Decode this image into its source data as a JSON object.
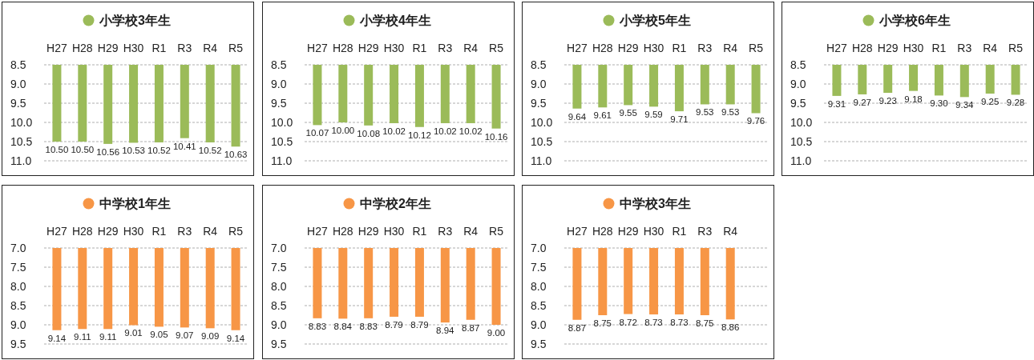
{
  "chart_data": [
    {
      "type": "bar",
      "title": "小学校3年生",
      "categories": [
        "H27",
        "H28",
        "H29",
        "H30",
        "R1",
        "R3",
        "R4",
        "R5"
      ],
      "values": [
        10.5,
        10.5,
        10.56,
        10.53,
        10.52,
        10.41,
        10.52,
        10.63
      ],
      "value_labels": [
        "10.50",
        "10.50",
        "10.56",
        "10.53",
        "10.52",
        "10.41",
        "10.52",
        "10.63"
      ],
      "color": "#9bbb59",
      "ylim": [
        11.0,
        8.5
      ],
      "yticks": [
        8.5,
        {
          "value": 9,
          "label": "9.0"
        },
        9.5,
        {
          "value": 10,
          "label": "10.0"
        },
        10.5,
        {
          "value": 11,
          "label": "11.0"
        }
      ],
      "grid": "y"
    },
    {
      "type": "bar",
      "title": "小学校4年生",
      "categories": [
        "H27",
        "H28",
        "H29",
        "H30",
        "R1",
        "R3",
        "R4",
        "R5"
      ],
      "values": [
        10.07,
        10.0,
        10.08,
        10.02,
        10.12,
        10.02,
        10.02,
        10.16
      ],
      "value_labels": [
        "10.07",
        "10.00",
        "10.08",
        "10.02",
        "10.12",
        "10.02",
        "10.02",
        "10.16"
      ],
      "color": "#9bbb59",
      "ylim": [
        11.0,
        8.5
      ],
      "yticks": [
        8.5,
        {
          "value": 9,
          "label": "9.0"
        },
        9.5,
        {
          "value": 10,
          "label": "10.0"
        },
        10.5,
        {
          "value": 11,
          "label": "11.0"
        }
      ],
      "grid": "y"
    },
    {
      "type": "bar",
      "title": "小学校5年生",
      "categories": [
        "H27",
        "H28",
        "H29",
        "H30",
        "R1",
        "R3",
        "R4",
        "R5"
      ],
      "values": [
        9.64,
        9.61,
        9.55,
        9.59,
        9.71,
        9.53,
        9.53,
        9.76
      ],
      "value_labels": [
        "9.64",
        "9.61",
        "9.55",
        "9.59",
        "9.71",
        "9.53",
        "9.53",
        "9.76"
      ],
      "color": "#9bbb59",
      "ylim": [
        11.0,
        8.5
      ],
      "yticks": [
        8.5,
        {
          "value": 9,
          "label": "9.0"
        },
        9.5,
        {
          "value": 10,
          "label": "10.0"
        },
        10.5,
        {
          "value": 11,
          "label": "11.0"
        }
      ],
      "grid": "y"
    },
    {
      "type": "bar",
      "title": "小学校6年生",
      "categories": [
        "H27",
        "H28",
        "H29",
        "H30",
        "R1",
        "R3",
        "R4",
        "R5"
      ],
      "values": [
        9.31,
        9.27,
        9.23,
        9.18,
        9.3,
        9.34,
        9.25,
        9.28
      ],
      "value_labels": [
        "9.31",
        "9.27",
        "9.23",
        "9.18",
        "9.30",
        "9.34",
        "9.25",
        "9.28"
      ],
      "color": "#9bbb59",
      "ylim": [
        11.0,
        8.5
      ],
      "yticks": [
        8.5,
        {
          "value": 9,
          "label": "9.0"
        },
        9.5,
        {
          "value": 10,
          "label": "10.0"
        },
        10.5,
        {
          "value": 11,
          "label": "11.0"
        }
      ],
      "grid": "y"
    },
    {
      "type": "bar",
      "title": "中学校1年生",
      "categories": [
        "H27",
        "H28",
        "H29",
        "H30",
        "R1",
        "R3",
        "R4",
        "R5"
      ],
      "values": [
        9.14,
        9.11,
        9.11,
        9.01,
        9.05,
        9.07,
        9.09,
        9.14
      ],
      "value_labels": [
        "9.14",
        "9.11",
        "9.11",
        "9.01",
        "9.05",
        "9.07",
        "9.09",
        "9.14"
      ],
      "color": "#f79646",
      "ylim": [
        9.5,
        7.0
      ],
      "yticks": [
        {
          "value": 7,
          "label": "7.0"
        },
        7.5,
        {
          "value": 8,
          "label": "8.0"
        },
        8.5,
        {
          "value": 9,
          "label": "9.0"
        },
        9.5
      ],
      "grid": "y"
    },
    {
      "type": "bar",
      "title": "中学校2年生",
      "categories": [
        "H27",
        "H28",
        "H29",
        "H30",
        "R1",
        "R3",
        "R4",
        "R5"
      ],
      "values": [
        8.83,
        8.84,
        8.83,
        8.79,
        8.79,
        8.94,
        8.87,
        9.0
      ],
      "value_labels": [
        "8.83",
        "8.84",
        "8.83",
        "8.79",
        "8.79",
        "8.94",
        "8.87",
        "9.00"
      ],
      "color": "#f79646",
      "ylim": [
        9.5,
        7.0
      ],
      "yticks": [
        {
          "value": 7,
          "label": "7.0"
        },
        7.5,
        {
          "value": 8,
          "label": "8.0"
        },
        8.5,
        {
          "value": 9,
          "label": "9.0"
        },
        9.5
      ],
      "grid": "y"
    },
    {
      "type": "bar",
      "title": "中学校3年生",
      "categories": [
        "H27",
        "H28",
        "H29",
        "H30",
        "R1",
        "R3",
        "R4"
      ],
      "values": [
        8.87,
        8.75,
        8.72,
        8.73,
        8.73,
        8.75,
        8.86
      ],
      "value_labels": [
        "8.87",
        "8.75",
        "8.72",
        "8.73",
        "8.73",
        "8.75",
        "8.86"
      ],
      "color": "#f79646",
      "ylim": [
        9.5,
        7.0
      ],
      "yticks": [
        {
          "value": 7,
          "label": "7.0"
        },
        7.5,
        {
          "value": 8,
          "label": "8.0"
        },
        8.5,
        {
          "value": 9,
          "label": "9.0"
        },
        9.5
      ],
      "grid": "y"
    }
  ]
}
